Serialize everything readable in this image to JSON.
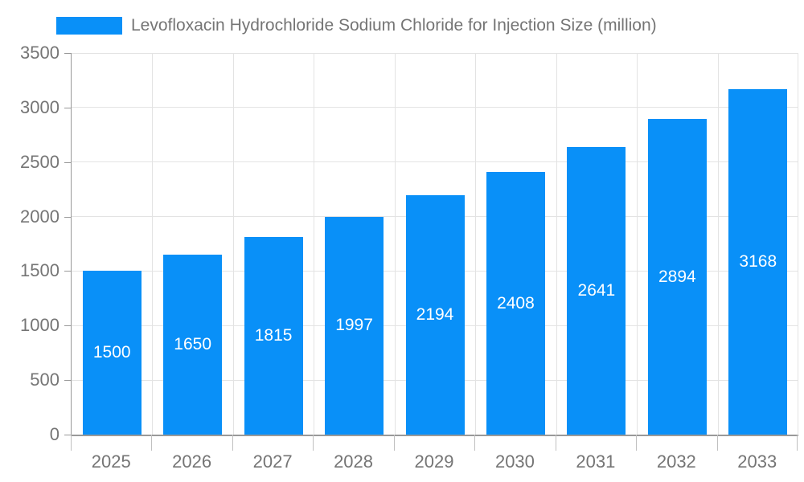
{
  "chart_data": {
    "type": "bar",
    "title": "Levofloxacin Hydrochloride Sodium Chloride for Injection Size (million)",
    "series_name": "Levofloxacin Hydrochloride Sodium Chloride for Injection Size (million)",
    "categories": [
      "2025",
      "2026",
      "2027",
      "2028",
      "2029",
      "2030",
      "2031",
      "2032",
      "2033"
    ],
    "values": [
      1500,
      1650,
      1815,
      1997,
      2194,
      2408,
      2641,
      2894,
      3168
    ],
    "xlabel": "",
    "ylabel": "",
    "ylim": [
      0,
      3500
    ],
    "yticks": [
      0,
      500,
      1000,
      1500,
      2000,
      2500,
      3000,
      3500
    ],
    "grid": true,
    "legend_position": "top-left",
    "bar_color": "#0990F8",
    "value_label_color": "#ffffff"
  },
  "colors": {
    "bar": "#0990F8",
    "axis": "#999999",
    "grid": "#e3e3e3",
    "tick": "#c0c0c0",
    "text": "#757575",
    "background": "#ffffff"
  }
}
